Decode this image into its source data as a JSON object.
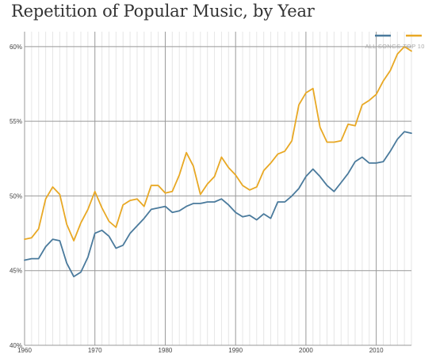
{
  "chart_data": {
    "type": "line",
    "title": "Repetition of Popular Music, by Year",
    "xlabel": "",
    "ylabel": "",
    "xlim": [
      1960,
      2015
    ],
    "ylim": [
      40,
      61
    ],
    "x_ticks": [
      1960,
      1970,
      1980,
      1990,
      2000,
      2010
    ],
    "x_tick_labels": [
      "1960",
      "1970",
      "1980",
      "1990",
      "2000",
      "2010"
    ],
    "y_ticks": [
      40,
      45,
      50,
      55,
      60
    ],
    "y_tick_labels": [
      "40%",
      "45%",
      "50%",
      "55%",
      "60%"
    ],
    "legend_position": "top-right",
    "grid": true,
    "x": [
      1960,
      1961,
      1962,
      1963,
      1964,
      1965,
      1966,
      1967,
      1968,
      1969,
      1970,
      1971,
      1972,
      1973,
      1974,
      1975,
      1976,
      1977,
      1978,
      1979,
      1980,
      1981,
      1982,
      1983,
      1984,
      1985,
      1986,
      1987,
      1988,
      1989,
      1990,
      1991,
      1992,
      1993,
      1994,
      1995,
      1996,
      1997,
      1998,
      1999,
      2000,
      2001,
      2002,
      2003,
      2004,
      2005,
      2006,
      2007,
      2008,
      2009,
      2010,
      2011,
      2012,
      2013,
      2014,
      2015
    ],
    "series": [
      {
        "name": "ALL SONGS",
        "color": "#4a7a9c",
        "values": [
          45.7,
          45.8,
          45.8,
          46.6,
          47.1,
          47.0,
          45.5,
          44.6,
          44.9,
          45.9,
          47.5,
          47.7,
          47.3,
          46.5,
          46.7,
          47.5,
          48.0,
          48.5,
          49.1,
          49.2,
          49.3,
          48.9,
          49.0,
          49.3,
          49.5,
          49.5,
          49.6,
          49.6,
          49.8,
          49.4,
          48.9,
          48.6,
          48.7,
          48.4,
          48.8,
          48.5,
          49.6,
          49.6,
          50.0,
          50.5,
          51.3,
          51.8,
          51.3,
          50.7,
          50.3,
          50.9,
          51.5,
          52.3,
          52.6,
          52.2,
          52.2,
          52.3,
          53.0,
          53.8,
          54.3,
          54.2
        ]
      },
      {
        "name": "TOP 10",
        "color": "#e8a824",
        "values": [
          47.1,
          47.2,
          47.8,
          49.8,
          50.6,
          50.1,
          48.1,
          47.0,
          48.2,
          49.1,
          50.3,
          49.2,
          48.3,
          47.9,
          49.4,
          49.7,
          49.8,
          49.3,
          50.7,
          50.7,
          50.2,
          50.3,
          51.4,
          52.9,
          52.0,
          50.1,
          50.8,
          51.3,
          52.6,
          51.9,
          51.4,
          50.7,
          50.4,
          50.6,
          51.7,
          52.2,
          52.8,
          53.0,
          53.7,
          56.1,
          56.9,
          57.2,
          54.6,
          53.6,
          53.6,
          53.7,
          54.8,
          54.7,
          56.1,
          56.4,
          56.8,
          57.7,
          58.4,
          59.5,
          60.0,
          59.7
        ]
      }
    ]
  }
}
